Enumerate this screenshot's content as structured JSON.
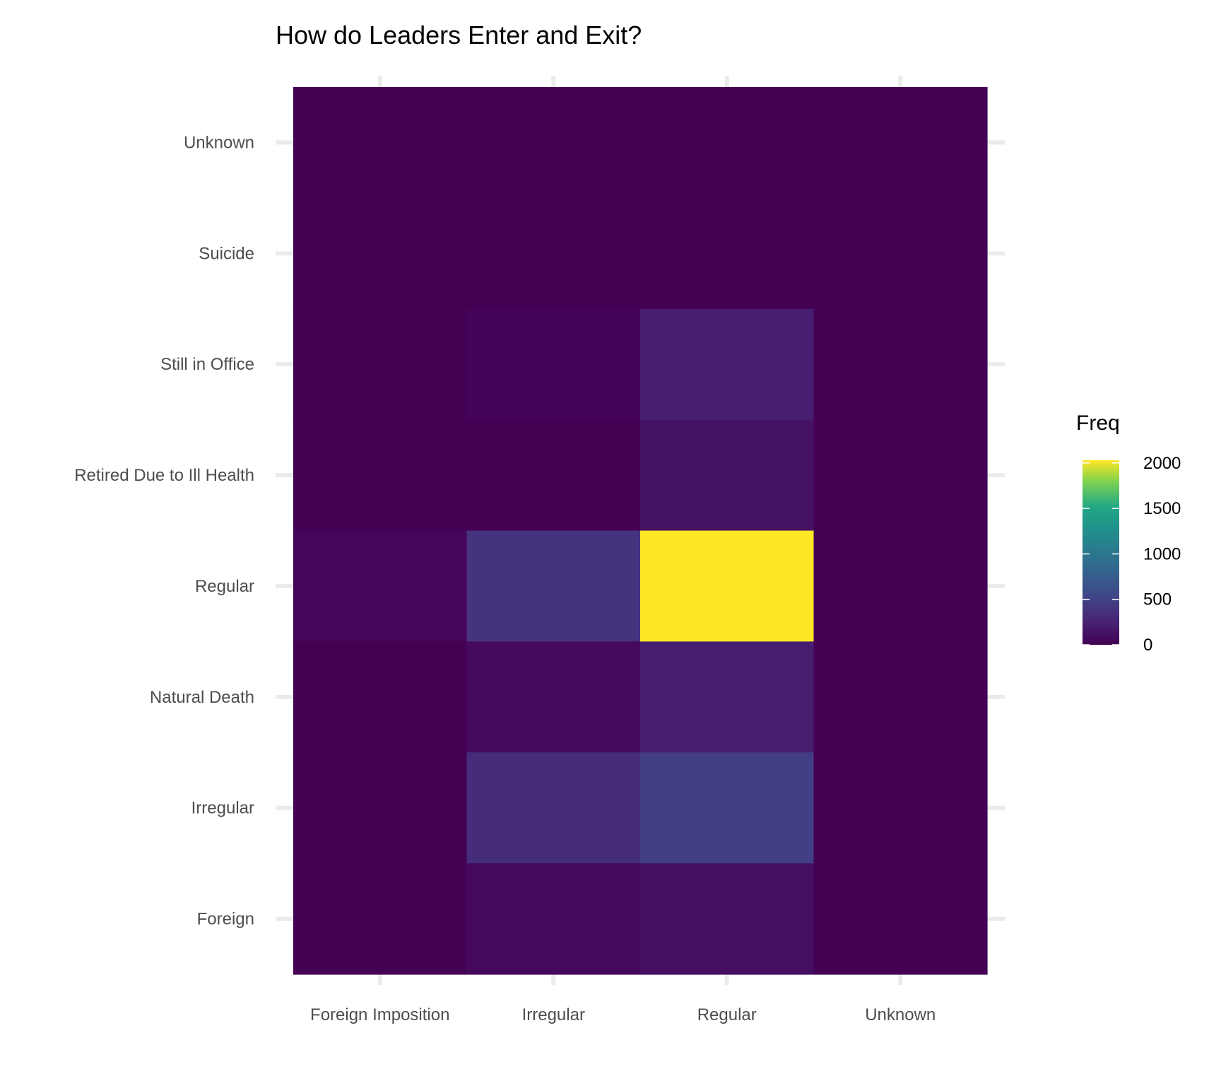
{
  "chart_data": {
    "type": "heatmap",
    "title": "How do Leaders Enter and Exit?",
    "xlabel": "",
    "ylabel": "",
    "x_categories": [
      "Foreign Imposition",
      "Irregular",
      "Regular",
      "Unknown"
    ],
    "y_categories": [
      "Unknown",
      "Suicide",
      "Still in Office",
      "Retired Due to Ill Health",
      "Regular",
      "Natural Death",
      "Irregular",
      "Foreign"
    ],
    "values": [
      [
        0,
        0,
        0,
        0
      ],
      [
        0,
        0,
        0,
        0
      ],
      [
        0,
        20,
        220,
        0
      ],
      [
        0,
        0,
        130,
        0
      ],
      [
        40,
        380,
        2030,
        0
      ],
      [
        0,
        70,
        210,
        0
      ],
      [
        0,
        330,
        460,
        0
      ],
      [
        10,
        60,
        100,
        0
      ]
    ],
    "color_scale": "viridis",
    "legend": {
      "title": "Freq",
      "ticks": [
        0,
        500,
        1000,
        1500,
        2000
      ],
      "limits": [
        0,
        2030
      ],
      "position": "right"
    },
    "grid": true
  }
}
